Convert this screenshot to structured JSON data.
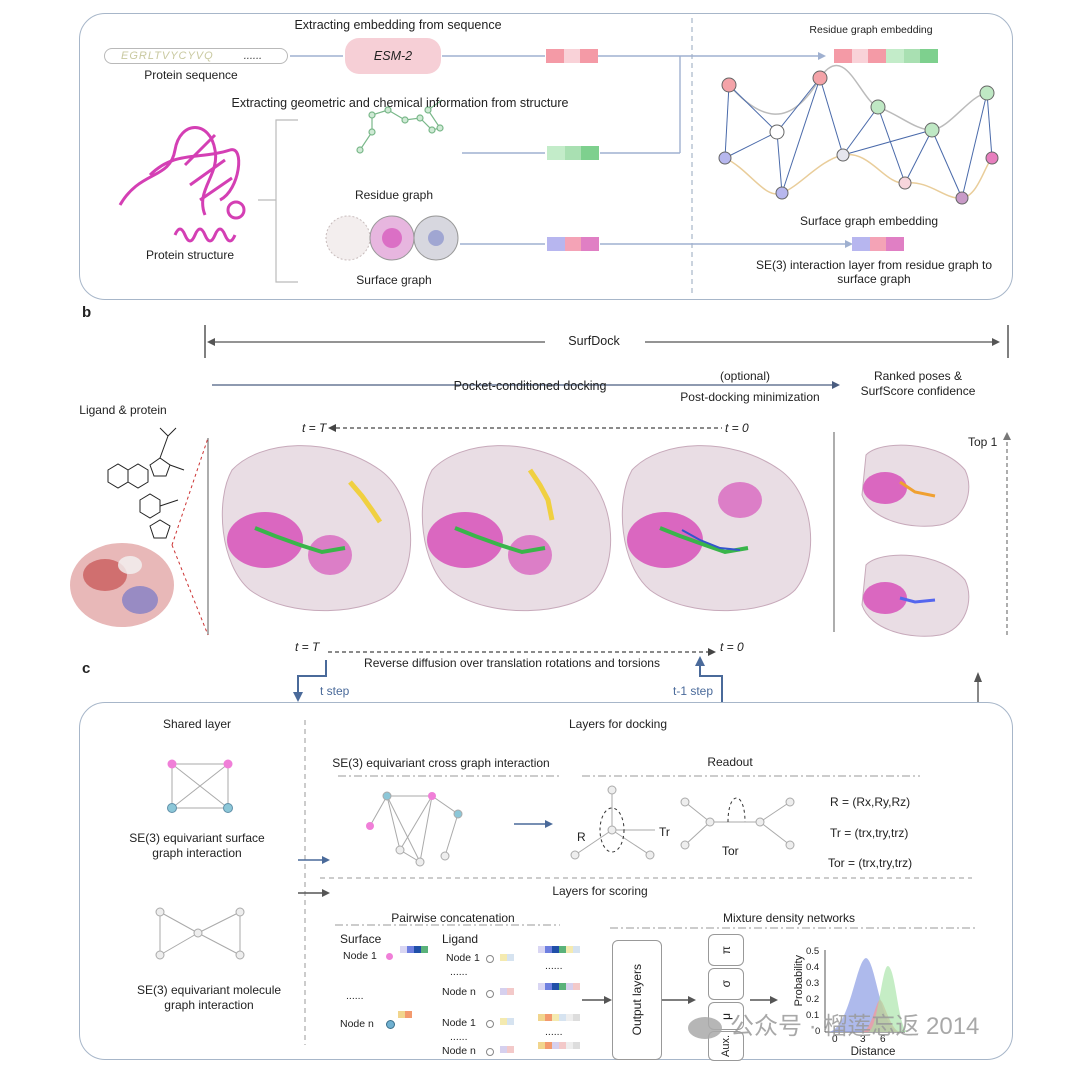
{
  "panel_a": {
    "seq_title": "Extracting embedding from sequence",
    "seq_text": "EGRLTVYCYVQ",
    "seq_dots": "......",
    "seq_label": "Protein sequence",
    "esm_label": "ESM-2",
    "struct_title": "Extracting geometric and chemical information from structure",
    "structure_label": "Protein structure",
    "residue_graph_label": "Residue graph",
    "surface_graph_label": "Surface graph",
    "residue_embedding_label": "Residue graph embedding",
    "surface_embedding_label": "Surface graph embedding",
    "interaction_line1": "SE(3) interaction layer from residue graph to",
    "interaction_line2": "surface graph"
  },
  "panel_b": {
    "letter": "b",
    "surfdock": "SurfDock",
    "pocket": "Pocket-conditioned docking",
    "optional": "(optional)",
    "post": "Post-docking minimization",
    "ranked_line1": "Ranked poses &",
    "ranked_line2": "SurfScore confidence",
    "ligand_protein": "Ligand & protein",
    "t_T": "t = T",
    "t_0": "t = 0",
    "top1": "Top 1",
    "reverse": "Reverse diffusion over translation rotations and torsions"
  },
  "panel_c": {
    "letter": "c",
    "t_step": "t step",
    "t1_step": "t-1 step",
    "shared": "Shared layer",
    "surface_inter_1": "SE(3) equivariant surface",
    "surface_inter_2": "graph interaction",
    "molecule_inter_1": "SE(3) equivariant molecule",
    "molecule_inter_2": "graph interaction",
    "docking_layers": "Layers for docking",
    "cross_graph": "SE(3) equivariant cross graph interaction",
    "readout": "Readout",
    "R": "R",
    "Tr": "Tr",
    "Tor": "Tor",
    "eq_R": "R = (Rx,Ry,Rz)",
    "eq_Tr": "Tr = (trx,try,trz)",
    "eq_Tor": "Tor = (trx,try,trz)",
    "scoring_layers": "Layers for scoring",
    "pairwise": "Pairwise concatenation",
    "mdn": "Mixture density networks",
    "surface": "Surface",
    "ligand": "Ligand",
    "node1": "Node 1",
    "noden": "Node n",
    "dots": "......",
    "output_layers": "Output layers",
    "pi": "π",
    "sigma": "σ",
    "mu": "μ",
    "aux": "Aux.",
    "ylabel": "Probability",
    "xlabel": "Distance",
    "yticks": [
      "0.5",
      "0.4",
      "0.3",
      "0.2",
      "0.1",
      "0"
    ],
    "xticks": [
      "0",
      "3",
      "6"
    ],
    "watermark": "公众号 · 榴莲忘返 2014"
  },
  "colors": {
    "border": "#a7b6c9",
    "magenta": "#d43fb4",
    "esm_fill": "#f6cfd6",
    "arrow": "#4a6a9a"
  }
}
